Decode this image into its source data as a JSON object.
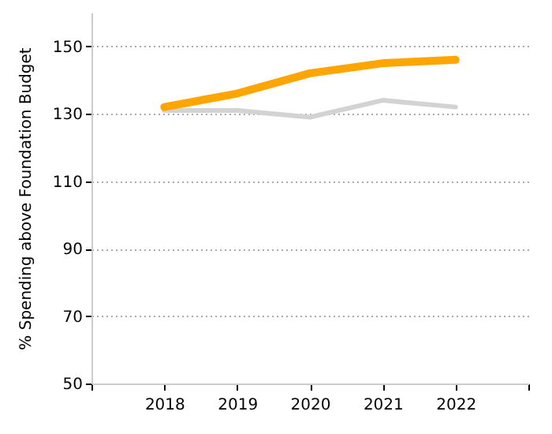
{
  "chart_data": {
    "type": "line",
    "ylabel": "% Spending above Foundation Budget",
    "x": [
      2018,
      2019,
      2020,
      2021,
      2022
    ],
    "series": [
      {
        "color": "#d3d3d3",
        "values": [
          131,
          131,
          129,
          134,
          132
        ]
      },
      {
        "color": "#ffa500",
        "values": [
          132,
          136,
          142,
          145,
          146
        ]
      }
    ],
    "xlim": [
      2017,
      2023
    ],
    "xticks": [
      {
        "value": 2017,
        "label": null
      },
      2018,
      2019,
      2020,
      2021,
      2022,
      {
        "value": 2023,
        "label": null
      }
    ],
    "ylim": [
      50,
      160
    ],
    "yticks": [
      50,
      70,
      90,
      110,
      130,
      150
    ],
    "grid": "y",
    "marker": "none",
    "line_style": "solid"
  }
}
